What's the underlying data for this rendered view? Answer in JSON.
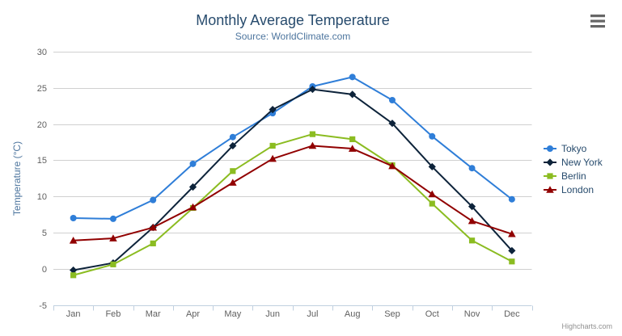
{
  "chart": {
    "credits_label": "Highcharts.com",
    "menu_icon": "hamburger-menu-icon"
  },
  "chart_data": {
    "type": "line",
    "title": "Monthly Average Temperature",
    "subtitle": "Source: WorldClimate.com",
    "xlabel": "",
    "ylabel": "Temperature (°C)",
    "categories": [
      "Jan",
      "Feb",
      "Mar",
      "Apr",
      "May",
      "Jun",
      "Jul",
      "Aug",
      "Sep",
      "Oct",
      "Nov",
      "Dec"
    ],
    "ylim": [
      -5,
      30
    ],
    "y_ticks": [
      -5,
      0,
      5,
      10,
      15,
      20,
      25,
      30
    ],
    "grid": true,
    "legend_position": "right-middle",
    "series": [
      {
        "name": "Tokyo",
        "color": "#2f7ed8",
        "marker": "circle",
        "values": [
          7.0,
          6.9,
          9.5,
          14.5,
          18.2,
          21.5,
          25.2,
          26.5,
          23.3,
          18.3,
          13.9,
          9.6
        ]
      },
      {
        "name": "New York",
        "color": "#0d233a",
        "marker": "diamond",
        "values": [
          -0.2,
          0.8,
          5.7,
          11.3,
          17.0,
          22.0,
          24.8,
          24.1,
          20.1,
          14.1,
          8.6,
          2.5
        ]
      },
      {
        "name": "Berlin",
        "color": "#8bbc21",
        "marker": "square",
        "values": [
          -0.9,
          0.6,
          3.5,
          8.4,
          13.5,
          17.0,
          18.6,
          17.9,
          14.3,
          9.0,
          3.9,
          1.0
        ]
      },
      {
        "name": "London",
        "color": "#910000",
        "marker": "triangle",
        "values": [
          3.9,
          4.2,
          5.7,
          8.5,
          11.9,
          15.2,
          17.0,
          16.6,
          14.2,
          10.3,
          6.6,
          4.8
        ]
      }
    ],
    "colors": {
      "title": "#274b6d",
      "subtitle": "#4d759e",
      "axis_labels": "#606060",
      "axis_title": "#4d759e",
      "legend_text": "#274b6d",
      "gridline": "#d0d0d0",
      "axis_line": "#c0d0e0",
      "credits": "#909090",
      "menu_icon": "#666666",
      "background": "#ffffff"
    }
  }
}
